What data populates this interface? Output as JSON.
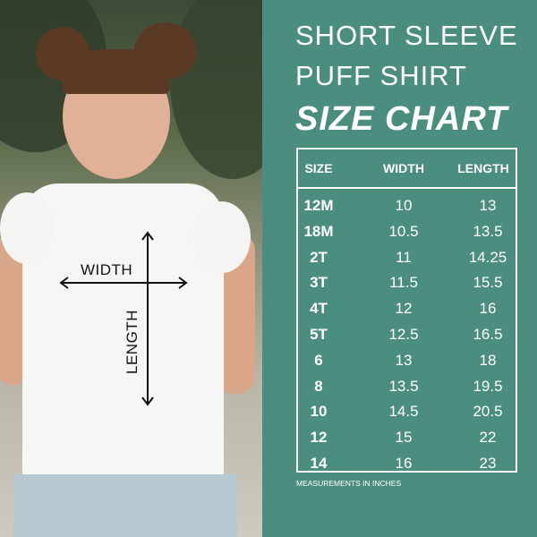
{
  "title": {
    "line1": "SHORT SLEEVE",
    "line2": "PUFF SHIRT",
    "line3": "SIZE CHART"
  },
  "colors": {
    "background": "#4b8d7f",
    "text": "#ffffff"
  },
  "photo": {
    "width_label": "WIDTH",
    "length_label": "LENGTH"
  },
  "table": {
    "headers": [
      "SIZE",
      "WIDTH",
      "LENGTH"
    ],
    "rows": [
      [
        "12M",
        "10",
        "13"
      ],
      [
        "18M",
        "10.5",
        "13.5"
      ],
      [
        "2T",
        "11",
        "14.25"
      ],
      [
        "3T",
        "11.5",
        "15.5"
      ],
      [
        "4T",
        "12",
        "16"
      ],
      [
        "5T",
        "12.5",
        "16.5"
      ],
      [
        "6",
        "13",
        "18"
      ],
      [
        "8",
        "13.5",
        "19.5"
      ],
      [
        "10",
        "14.5",
        "20.5"
      ],
      [
        "12",
        "15",
        "22"
      ],
      [
        "14",
        "16",
        "23"
      ]
    ]
  },
  "note": "MEASUREMENTS IN INCHES"
}
